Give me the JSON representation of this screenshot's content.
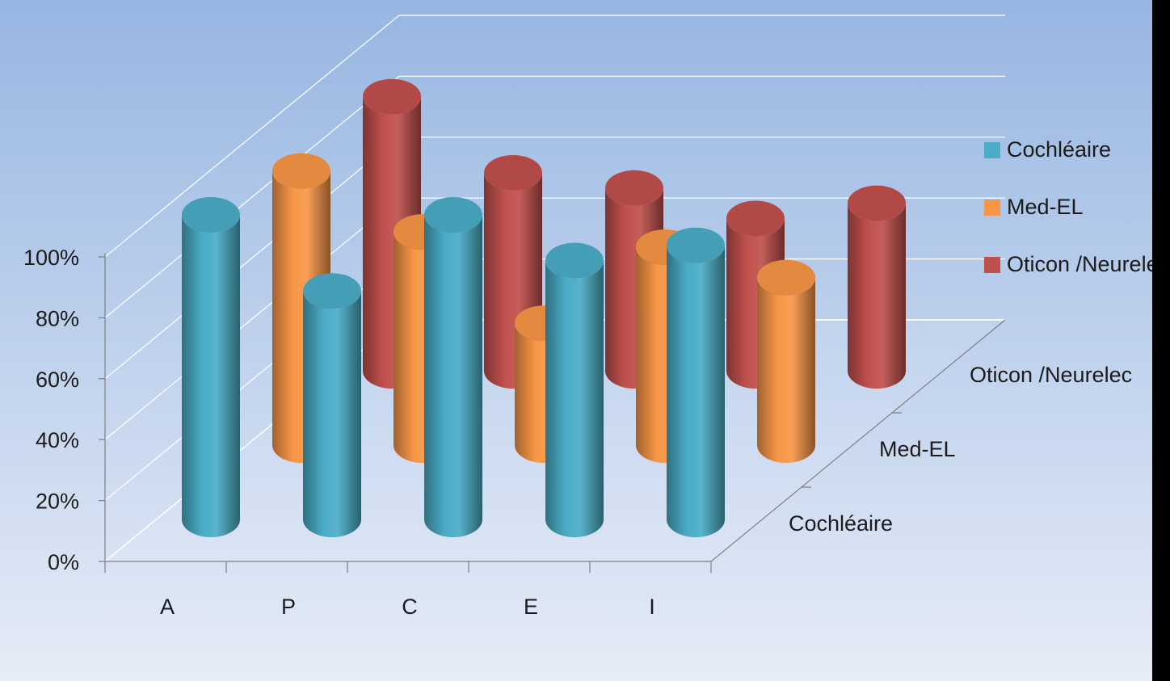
{
  "chart_data": {
    "type": "bar",
    "style": "3d-cylinder",
    "title": "",
    "categories": [
      "A",
      "P",
      "C",
      "E",
      "I"
    ],
    "series": [
      {
        "name": "Cochléaire",
        "color": "#4aacc6",
        "values": [
          100,
          75,
          100,
          85,
          90
        ]
      },
      {
        "name": "Med-EL",
        "color": "#f79646",
        "values": [
          90,
          70,
          40,
          65,
          55
        ]
      },
      {
        "name": "Oticon /Neurelec",
        "color": "#c0504d",
        "values": [
          90,
          65,
          60,
          50,
          55
        ]
      }
    ],
    "depth_labels": [
      "Cochléaire",
      "Med-EL",
      "Oticon /Neurelec"
    ],
    "yticks": [
      "0%",
      "20%",
      "40%",
      "60%",
      "80%",
      "100%"
    ],
    "ylim": [
      0,
      100
    ],
    "grid": true,
    "legend_position": "right"
  },
  "colors": {
    "background_top": "#97b6e2",
    "background_bottom": "#e6ecf7",
    "grid": "#ffffff",
    "axis": "#7f7f7f"
  }
}
